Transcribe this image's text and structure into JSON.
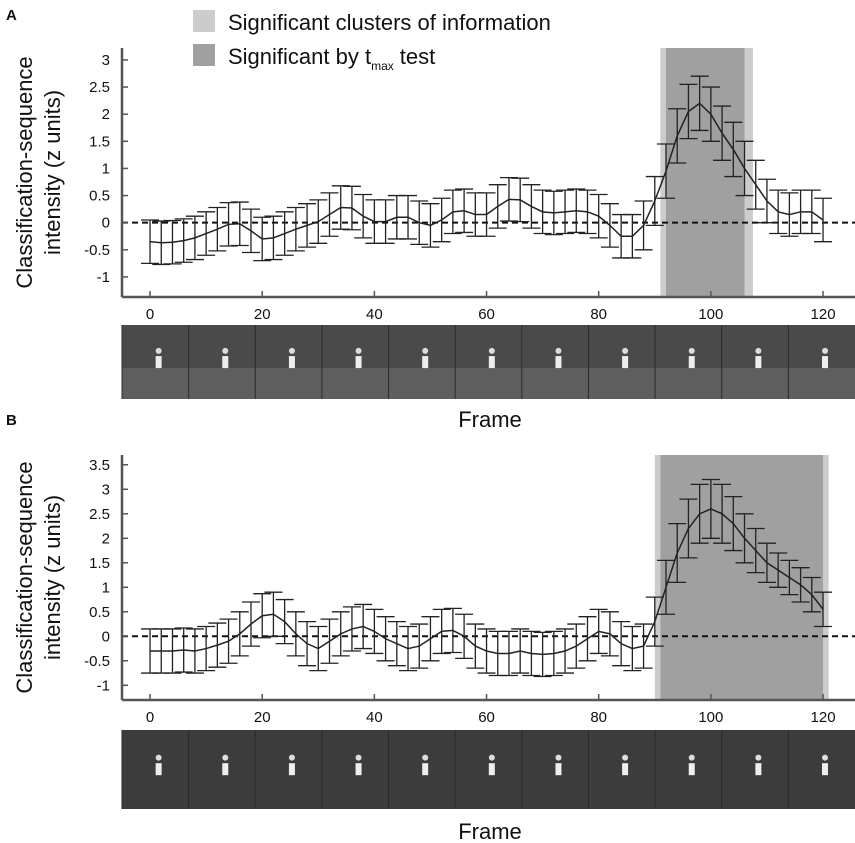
{
  "chart_data": [
    {
      "type": "line",
      "panel_label": "A",
      "legend": [
        {
          "name": "Significant clusters of information",
          "color": "#cccccc"
        },
        {
          "name": "Significant by t",
          "sub": "max",
          "after": "test",
          "color": "#a0a0a0"
        }
      ],
      "regions": [
        [
          91,
          107.5
        ],
        [
          92,
          106
        ]
      ],
      "ylabel": [
        "Classification-sequence",
        "intensity (z units)"
      ],
      "xlabel": "Frame",
      "xlim": [
        -5,
        125.7
      ],
      "xticks": [
        0,
        20,
        40,
        60,
        80,
        100,
        120
      ],
      "ylim": [
        -1.37,
        3.22
      ],
      "yticks": [
        -1,
        -0.5,
        0,
        0.5,
        1,
        1.5,
        2,
        2.5,
        3
      ],
      "reference_line": 0,
      "x": [
        0,
        2,
        4,
        6,
        8,
        10,
        12,
        14,
        16,
        18,
        20,
        22,
        24,
        26,
        28,
        30,
        32,
        34,
        36,
        38,
        40,
        42,
        44,
        46,
        48,
        50,
        52,
        54,
        56,
        58,
        60,
        62,
        64,
        66,
        68,
        70,
        72,
        74,
        76,
        78,
        80,
        82,
        84,
        86,
        88,
        90,
        92,
        94,
        96,
        98,
        100,
        102,
        104,
        106,
        108,
        110,
        112,
        114,
        116,
        118,
        120
      ],
      "values": [
        -0.35,
        -0.37,
        -0.36,
        -0.33,
        -0.28,
        -0.2,
        -0.12,
        -0.03,
        -0.02,
        -0.15,
        -0.3,
        -0.28,
        -0.2,
        -0.12,
        -0.05,
        0.02,
        0.15,
        0.28,
        0.27,
        0.12,
        0.02,
        0.02,
        0.1,
        0.1,
        0.0,
        -0.05,
        0.05,
        0.2,
        0.22,
        0.15,
        0.15,
        0.3,
        0.43,
        0.42,
        0.3,
        0.2,
        0.18,
        0.2,
        0.22,
        0.2,
        0.12,
        -0.05,
        -0.25,
        -0.25,
        -0.05,
        0.4,
        0.95,
        1.6,
        2.05,
        2.2,
        2.0,
        1.65,
        1.35,
        1.0,
        0.7,
        0.4,
        0.2,
        0.15,
        0.2,
        0.2,
        0.05
      ],
      "errors": [
        0.4,
        0.4,
        0.4,
        0.4,
        0.4,
        0.4,
        0.4,
        0.4,
        0.4,
        0.4,
        0.4,
        0.4,
        0.4,
        0.4,
        0.4,
        0.4,
        0.4,
        0.4,
        0.4,
        0.4,
        0.4,
        0.4,
        0.4,
        0.4,
        0.4,
        0.4,
        0.4,
        0.4,
        0.4,
        0.4,
        0.4,
        0.4,
        0.4,
        0.4,
        0.4,
        0.4,
        0.4,
        0.4,
        0.4,
        0.4,
        0.4,
        0.4,
        0.4,
        0.4,
        0.45,
        0.45,
        0.5,
        0.5,
        0.5,
        0.5,
        0.5,
        0.5,
        0.5,
        0.5,
        0.45,
        0.4,
        0.4,
        0.4,
        0.4,
        0.4,
        0.4
      ],
      "color": "#222222"
    },
    {
      "type": "line",
      "panel_label": "B",
      "regions": [
        [
          90,
          121
        ],
        [
          91,
          120
        ]
      ],
      "ylabel": [
        "Classification-sequence",
        "intensity (z units)"
      ],
      "xlabel": "Frame",
      "xlim": [
        -5,
        125.7
      ],
      "xticks": [
        0,
        20,
        40,
        60,
        80,
        100,
        120
      ],
      "ylim": [
        -1.3,
        3.7
      ],
      "yticks": [
        -1,
        -0.5,
        0,
        0.5,
        1,
        1.5,
        2,
        2.5,
        3,
        3.5
      ],
      "reference_line": 0,
      "x": [
        0,
        2,
        4,
        6,
        8,
        10,
        12,
        14,
        16,
        18,
        20,
        22,
        24,
        26,
        28,
        30,
        32,
        34,
        36,
        38,
        40,
        42,
        44,
        46,
        48,
        50,
        52,
        54,
        56,
        58,
        60,
        62,
        64,
        66,
        68,
        70,
        72,
        74,
        76,
        78,
        80,
        82,
        84,
        86,
        88,
        90,
        92,
        94,
        96,
        98,
        100,
        102,
        104,
        106,
        108,
        110,
        112,
        114,
        116,
        118,
        120
      ],
      "values": [
        -0.3,
        -0.3,
        -0.3,
        -0.28,
        -0.3,
        -0.25,
        -0.18,
        -0.1,
        0.05,
        0.25,
        0.42,
        0.45,
        0.3,
        0.05,
        -0.15,
        -0.25,
        -0.1,
        0.05,
        0.15,
        0.2,
        0.1,
        -0.05,
        -0.15,
        -0.25,
        -0.2,
        -0.05,
        0.1,
        0.12,
        0.0,
        -0.2,
        -0.3,
        -0.35,
        -0.35,
        -0.3,
        -0.35,
        -0.37,
        -0.35,
        -0.3,
        -0.2,
        -0.05,
        0.1,
        0.05,
        -0.15,
        -0.25,
        -0.2,
        0.3,
        1.0,
        1.7,
        2.2,
        2.5,
        2.6,
        2.5,
        2.3,
        2.0,
        1.75,
        1.5,
        1.35,
        1.2,
        1.05,
        0.85,
        0.55
      ],
      "errors": [
        0.45,
        0.45,
        0.45,
        0.45,
        0.45,
        0.45,
        0.45,
        0.45,
        0.45,
        0.45,
        0.45,
        0.45,
        0.45,
        0.45,
        0.45,
        0.45,
        0.45,
        0.45,
        0.45,
        0.45,
        0.45,
        0.45,
        0.45,
        0.45,
        0.45,
        0.45,
        0.45,
        0.45,
        0.45,
        0.45,
        0.45,
        0.45,
        0.45,
        0.45,
        0.45,
        0.45,
        0.45,
        0.45,
        0.45,
        0.45,
        0.45,
        0.45,
        0.45,
        0.45,
        0.45,
        0.5,
        0.55,
        0.6,
        0.6,
        0.6,
        0.6,
        0.6,
        0.55,
        0.5,
        0.45,
        0.4,
        0.35,
        0.35,
        0.35,
        0.35,
        0.35
      ],
      "color": "#222222"
    }
  ]
}
